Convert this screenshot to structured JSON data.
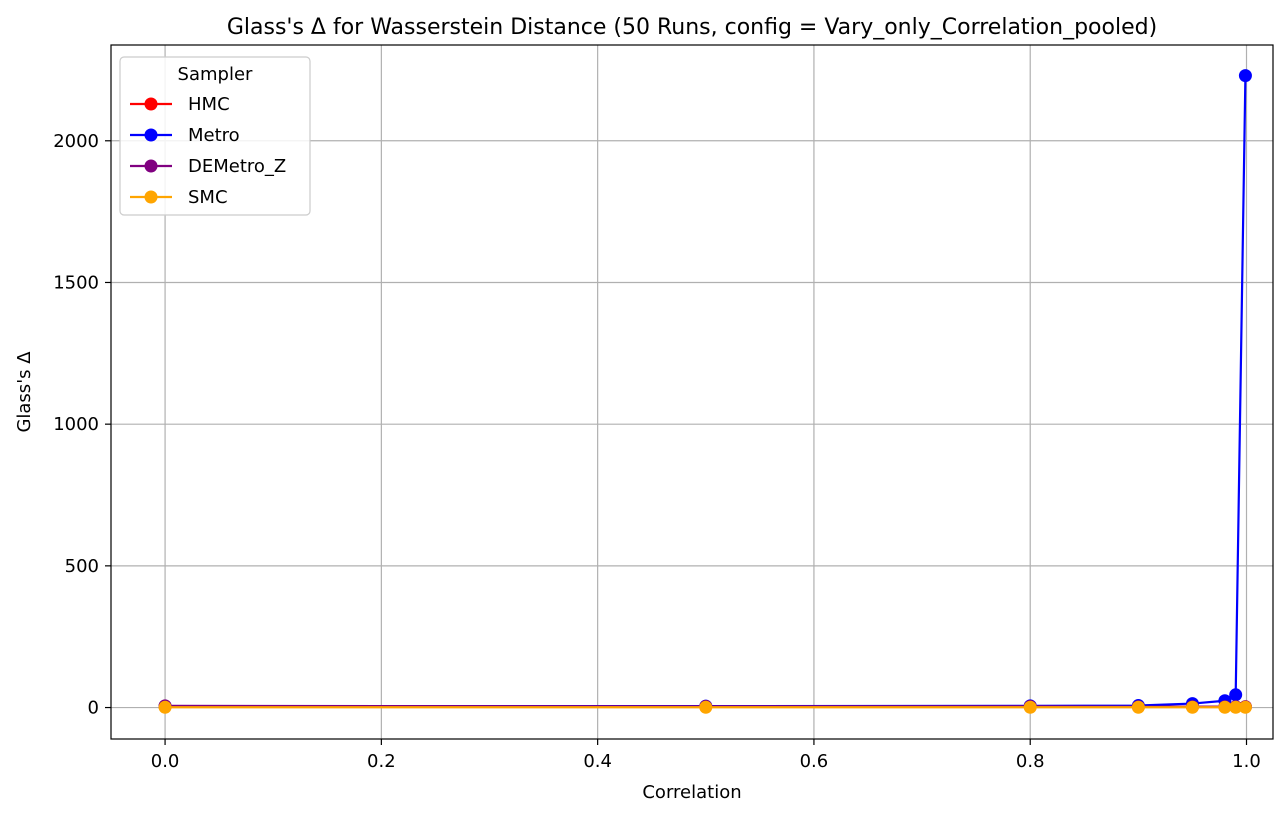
{
  "chart_data": {
    "type": "line",
    "title": "Glass's Δ for Wasserstein Distance (50 Runs, config = Vary_only_Correlation_pooled)",
    "xlabel": "Correlation",
    "ylabel": "Glass's Δ",
    "xlim": [
      -0.05,
      1.0245
    ],
    "ylim": [
      -111,
      2338
    ],
    "x_ticks": [
      0.0,
      0.2,
      0.4,
      0.6,
      0.8,
      1.0
    ],
    "x_tick_labels": [
      "0.0",
      "0.2",
      "0.4",
      "0.6",
      "0.8",
      "1.0"
    ],
    "y_ticks": [
      0,
      500,
      1000,
      1500,
      2000
    ],
    "y_tick_labels": [
      "0",
      "500",
      "1000",
      "1500",
      "2000"
    ],
    "grid": true,
    "legend": {
      "title": "Sampler",
      "position": "top-left"
    },
    "x": [
      0.0,
      0.5,
      0.8,
      0.9,
      0.95,
      0.98,
      0.99,
      0.999
    ],
    "series": [
      {
        "name": "HMC",
        "color": "#ff0000",
        "values": [
          3,
          3,
          3,
          3,
          3,
          3,
          3,
          3
        ]
      },
      {
        "name": "Metro",
        "color": "#0000ff",
        "values": [
          5,
          5,
          6,
          7,
          14,
          24,
          45,
          2230
        ]
      },
      {
        "name": "DEMetro_Z",
        "color": "#800080",
        "values": [
          6,
          4,
          4,
          3,
          3,
          3,
          3,
          3
        ]
      },
      {
        "name": "SMC",
        "color": "#ffa500",
        "values": [
          1,
          1,
          1,
          1,
          1,
          1,
          1,
          1
        ]
      }
    ]
  }
}
